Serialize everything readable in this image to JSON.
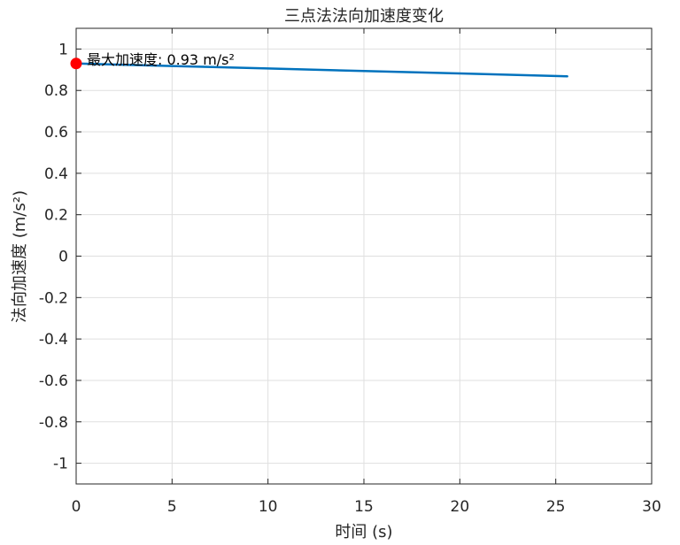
{
  "chart_data": {
    "type": "line",
    "title": "三点法法向加速度变化",
    "xlabel": "时间 (s)",
    "ylabel": "法向加速度 (m/s²)",
    "xlim": [
      0,
      30
    ],
    "ylim": [
      -1.1,
      1.1
    ],
    "x_ticks": [
      0,
      5,
      10,
      15,
      20,
      25,
      30
    ],
    "y_ticks": [
      -1,
      -0.8,
      -0.6,
      -0.4,
      -0.2,
      0,
      0.2,
      0.4,
      0.6,
      0.8,
      1
    ],
    "grid": true,
    "series": [
      {
        "color": "#0072BD",
        "x": [
          0,
          5,
          10,
          15,
          20,
          25.6
        ],
        "y": [
          0.93,
          0.918,
          0.906,
          0.894,
          0.882,
          0.868
        ]
      }
    ],
    "marker": {
      "x": 0,
      "y": 0.93,
      "color": "#FF0000"
    },
    "annotation": {
      "text": "最大加速度: 0.93 m/s²",
      "x": 0,
      "y": 0.93
    }
  }
}
